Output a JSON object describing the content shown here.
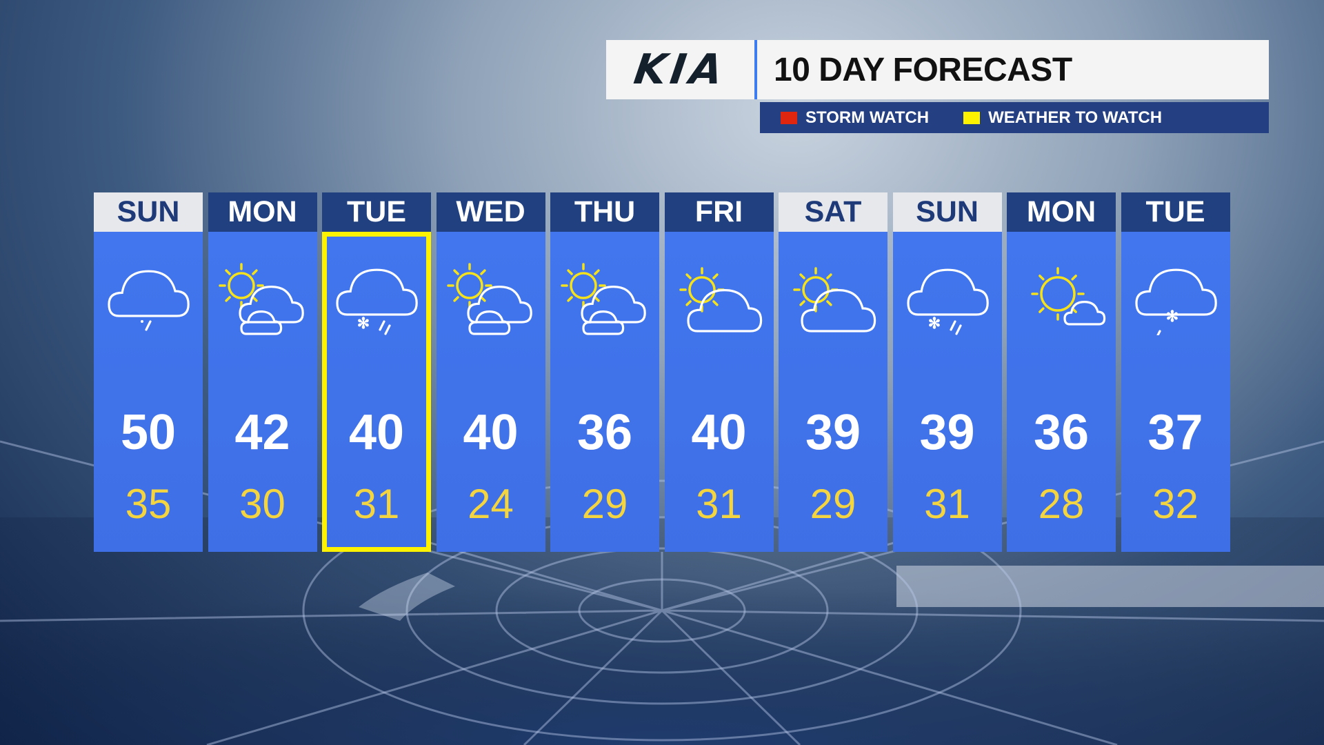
{
  "brand": "KIA",
  "title": "10 DAY FORECAST",
  "legend": [
    {
      "label": "STORM WATCH",
      "color": "#e0260f"
    },
    {
      "label": "WEATHER TO WATCH",
      "color": "#fff200"
    }
  ],
  "colors": {
    "column": "#4176ee",
    "header_dark": "#21407f",
    "header_light": "#e6e8ec",
    "low_temp": "#f5d53f",
    "highlight": "#fff200"
  },
  "days": [
    {
      "day": "SUN",
      "hi": "50",
      "lo": "35",
      "icon": "cloud-rain",
      "weekend": true
    },
    {
      "day": "MON",
      "hi": "42",
      "lo": "30",
      "icon": "partly-cloudy"
    },
    {
      "day": "TUE",
      "hi": "40",
      "lo": "31",
      "icon": "cloud-snow-rain",
      "highlight": "weather-to-watch"
    },
    {
      "day": "WED",
      "hi": "40",
      "lo": "24",
      "icon": "partly-cloudy"
    },
    {
      "day": "THU",
      "hi": "36",
      "lo": "29",
      "icon": "partly-cloudy"
    },
    {
      "day": "FRI",
      "hi": "40",
      "lo": "31",
      "icon": "mostly-cloudy-sun"
    },
    {
      "day": "SAT",
      "hi": "39",
      "lo": "29",
      "icon": "mostly-cloudy-sun",
      "weekend": true
    },
    {
      "day": "SUN",
      "hi": "39",
      "lo": "31",
      "icon": "cloud-snow-rain",
      "weekend": true
    },
    {
      "day": "MON",
      "hi": "36",
      "lo": "28",
      "icon": "mostly-sunny"
    },
    {
      "day": "TUE",
      "hi": "37",
      "lo": "32",
      "icon": "cloud-snow"
    }
  ]
}
